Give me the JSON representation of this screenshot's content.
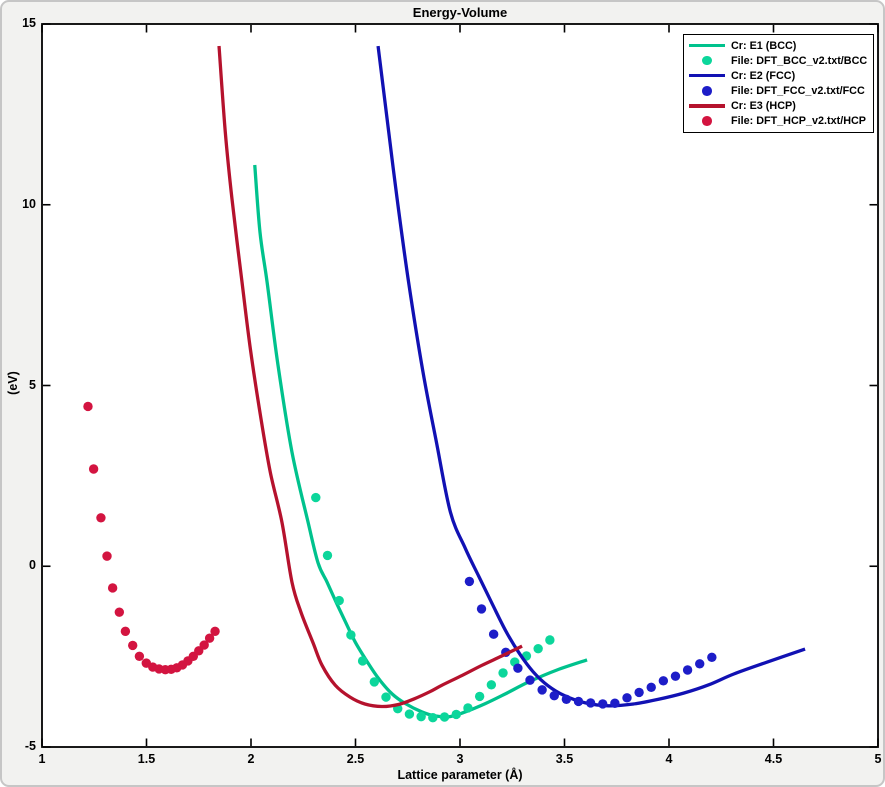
{
  "chart_data": {
    "type": "line+scatter",
    "title": "Energy-Volume",
    "xlabel": "Lattice parameter (Å)",
    "ylabel": "(eV)",
    "xlim": [
      1,
      5
    ],
    "ylim": [
      -5,
      15
    ],
    "xticks": [
      1,
      1.5,
      2,
      2.5,
      3,
      3.5,
      4,
      4.5,
      5
    ],
    "xtick_labels": [
      "1",
      "1.5",
      "2",
      "2.5",
      "3",
      "3.5",
      "4",
      "4.5",
      "5"
    ],
    "yticks": [
      -5,
      0,
      5,
      10,
      15
    ],
    "ytick_labels": [
      "-5",
      "0",
      "5",
      "10",
      "15"
    ],
    "grid": false,
    "legend_position": "top-right",
    "series": [
      {
        "name": "Cr: E1 (BCC)",
        "kind": "line",
        "color": "#00c28d",
        "points": [
          [
            2.018,
            11.1
          ],
          [
            2.043,
            9.24
          ],
          [
            2.077,
            7.86
          ],
          [
            2.129,
            5.57
          ],
          [
            2.196,
            3.16
          ],
          [
            2.273,
            1.22
          ],
          [
            2.321,
            0.09
          ],
          [
            2.364,
            -0.44
          ],
          [
            2.407,
            -0.99
          ],
          [
            2.452,
            -1.54
          ],
          [
            2.499,
            -2.1
          ],
          [
            2.557,
            -2.65
          ],
          [
            2.611,
            -3.11
          ],
          [
            2.675,
            -3.53
          ],
          [
            2.739,
            -3.8
          ],
          [
            2.818,
            -4.03
          ],
          [
            2.88,
            -4.14
          ],
          [
            2.952,
            -4.16
          ],
          [
            3.025,
            -4.03
          ],
          [
            3.121,
            -3.8
          ],
          [
            3.217,
            -3.53
          ],
          [
            3.329,
            -3.2
          ],
          [
            3.464,
            -2.87
          ],
          [
            3.608,
            -2.59
          ]
        ]
      },
      {
        "name": "File: DFT_BCC_v2.txt/BCC",
        "kind": "scatter",
        "color": "#0cd69b",
        "points": [
          [
            2.31,
            1.9
          ],
          [
            2.366,
            0.3
          ],
          [
            2.422,
            -0.95
          ],
          [
            2.478,
            -1.9
          ],
          [
            2.534,
            -2.62
          ],
          [
            2.59,
            -3.2
          ],
          [
            2.646,
            -3.62
          ],
          [
            2.702,
            -3.94
          ],
          [
            2.758,
            -4.09
          ],
          [
            2.814,
            -4.16
          ],
          [
            2.87,
            -4.19
          ],
          [
            2.926,
            -4.17
          ],
          [
            2.982,
            -4.1
          ],
          [
            3.038,
            -3.92
          ],
          [
            3.094,
            -3.6
          ],
          [
            3.15,
            -3.28
          ],
          [
            3.206,
            -2.95
          ],
          [
            3.262,
            -2.65
          ],
          [
            3.318,
            -2.48
          ],
          [
            3.374,
            -2.28
          ],
          [
            3.43,
            -2.04
          ]
        ]
      },
      {
        "name": "Cr: E2 (FCC)",
        "kind": "line",
        "color": "#1111b3",
        "points": [
          [
            2.608,
            14.39
          ],
          [
            2.659,
            12.01
          ],
          [
            2.699,
            10.17
          ],
          [
            2.754,
            7.86
          ],
          [
            2.823,
            5.37
          ],
          [
            2.887,
            3.44
          ],
          [
            2.954,
            1.5
          ],
          [
            3.025,
            0.5
          ],
          [
            3.09,
            -0.28
          ],
          [
            3.155,
            -1.05
          ],
          [
            3.22,
            -1.8
          ],
          [
            3.285,
            -2.42
          ],
          [
            3.35,
            -2.92
          ],
          [
            3.42,
            -3.3
          ],
          [
            3.5,
            -3.58
          ],
          [
            3.6,
            -3.78
          ],
          [
            3.71,
            -3.86
          ],
          [
            3.83,
            -3.81
          ],
          [
            3.95,
            -3.68
          ],
          [
            4.07,
            -3.51
          ],
          [
            4.19,
            -3.28
          ],
          [
            4.31,
            -2.98
          ],
          [
            4.47,
            -2.65
          ],
          [
            4.651,
            -2.29
          ]
        ]
      },
      {
        "name": "File: DFT_FCC_v2.txt/FCC",
        "kind": "scatter",
        "color": "#1d1dc8",
        "points": [
          [
            3.045,
            -0.42
          ],
          [
            3.103,
            -1.18
          ],
          [
            3.161,
            -1.88
          ],
          [
            3.219,
            -2.38
          ],
          [
            3.277,
            -2.82
          ],
          [
            3.335,
            -3.15
          ],
          [
            3.393,
            -3.42
          ],
          [
            3.451,
            -3.58
          ],
          [
            3.509,
            -3.68
          ],
          [
            3.567,
            -3.74
          ],
          [
            3.625,
            -3.78
          ],
          [
            3.683,
            -3.81
          ],
          [
            3.741,
            -3.79
          ],
          [
            3.799,
            -3.64
          ],
          [
            3.857,
            -3.49
          ],
          [
            3.915,
            -3.35
          ],
          [
            3.973,
            -3.17
          ],
          [
            4.031,
            -3.04
          ],
          [
            4.089,
            -2.87
          ],
          [
            4.147,
            -2.7
          ],
          [
            4.205,
            -2.52
          ]
        ]
      },
      {
        "name": "Cr: E3 (HCP)",
        "kind": "line",
        "color": "#b5122d",
        "points": [
          [
            1.847,
            14.39
          ],
          [
            1.877,
            12.01
          ],
          [
            1.909,
            10.16
          ],
          [
            1.957,
            7.86
          ],
          [
            1.997,
            6.01
          ],
          [
            2.045,
            4.18
          ],
          [
            2.092,
            2.61
          ],
          [
            2.148,
            1.22
          ],
          [
            2.196,
            -0.44
          ],
          [
            2.239,
            -1.27
          ],
          [
            2.297,
            -2.12
          ],
          [
            2.34,
            -2.74
          ],
          [
            2.403,
            -3.29
          ],
          [
            2.474,
            -3.62
          ],
          [
            2.545,
            -3.81
          ],
          [
            2.627,
            -3.88
          ],
          [
            2.708,
            -3.82
          ],
          [
            2.78,
            -3.67
          ],
          [
            2.856,
            -3.47
          ],
          [
            2.914,
            -3.29
          ],
          [
            3.01,
            -3.02
          ],
          [
            3.105,
            -2.74
          ],
          [
            3.201,
            -2.48
          ],
          [
            3.297,
            -2.21
          ]
        ]
      },
      {
        "name": "File: DFT_HCP_v2.txt/HCP",
        "kind": "scatter",
        "color": "#d31440",
        "points": [
          [
            1.22,
            4.42
          ],
          [
            1.247,
            2.69
          ],
          [
            1.282,
            1.34
          ],
          [
            1.311,
            0.28
          ],
          [
            1.338,
            -0.6
          ],
          [
            1.37,
            -1.27
          ],
          [
            1.399,
            -1.8
          ],
          [
            1.434,
            -2.19
          ],
          [
            1.466,
            -2.49
          ],
          [
            1.499,
            -2.68
          ],
          [
            1.53,
            -2.79
          ],
          [
            1.56,
            -2.84
          ],
          [
            1.59,
            -2.86
          ],
          [
            1.618,
            -2.85
          ],
          [
            1.645,
            -2.81
          ],
          [
            1.672,
            -2.73
          ],
          [
            1.698,
            -2.62
          ],
          [
            1.724,
            -2.49
          ],
          [
            1.75,
            -2.34
          ],
          [
            1.776,
            -2.18
          ],
          [
            1.802,
            -1.99
          ],
          [
            1.828,
            -1.8
          ]
        ]
      }
    ]
  }
}
